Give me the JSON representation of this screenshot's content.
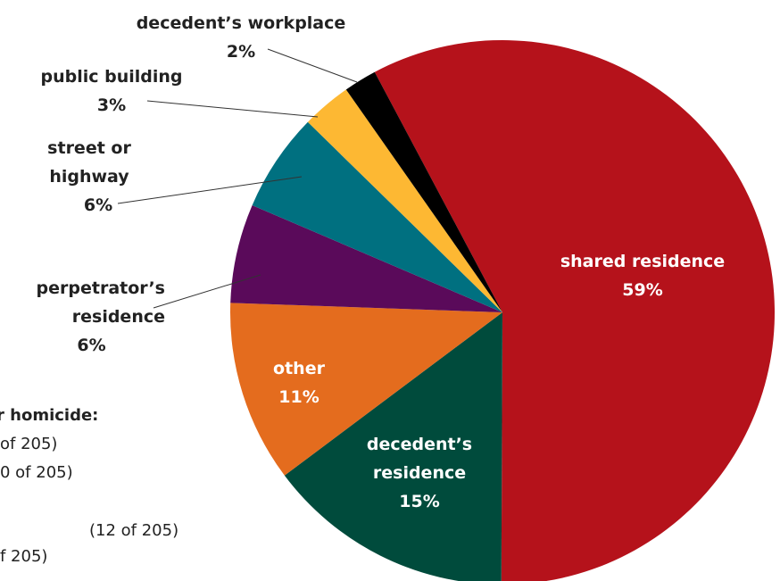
{
  "chart_data": {
    "type": "pie",
    "categories": [
      "shared residence",
      "decedent’s residence",
      "other",
      "perpetrator’s residence",
      "street or highway",
      "public building",
      "decedent’s workplace"
    ],
    "values": [
      59,
      15,
      11,
      6,
      6,
      3,
      2
    ],
    "value_labels": [
      "59%",
      "15%",
      "11%",
      "6%",
      "6%",
      "3%",
      "2%"
    ],
    "colors": [
      "#b5121b",
      "#004b3c",
      "#e46c1e",
      "#5a0a5a",
      "#007080",
      "#fdb833",
      "#000000"
    ],
    "annotations": [
      "r homicide:",
      "of 205)",
      "0 of 205)",
      "(12 of 205)",
      "f 205)"
    ]
  }
}
